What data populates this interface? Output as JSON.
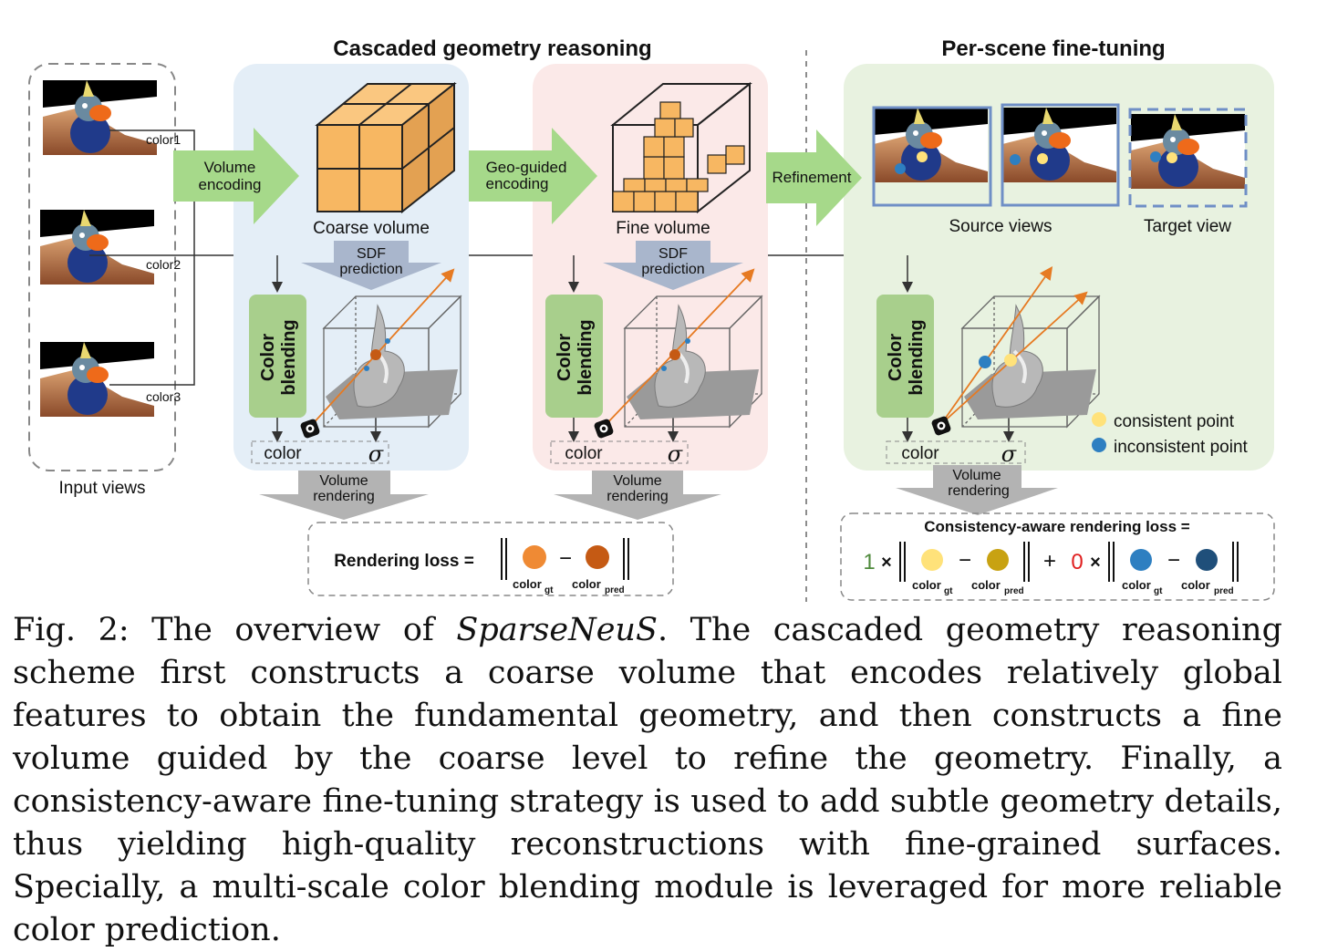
{
  "figure": {
    "sections": {
      "cascaded_title": "Cascaded geometry reasoning",
      "finetune_title": "Per-scene fine-tuning"
    },
    "input": {
      "caption": "Input views",
      "colors": [
        "color1",
        "color2",
        "color3"
      ]
    },
    "arrows": {
      "volume_encoding": [
        "Volume",
        "encoding"
      ],
      "geo_guided": [
        "Geo-guided",
        "encoding"
      ],
      "refinement": "Refinement"
    },
    "volumes": {
      "coarse": "Coarse volume",
      "fine": "Fine volume"
    },
    "sdf_prediction": [
      "SDF",
      "prediction"
    ],
    "color_blending": [
      "Color",
      "blending"
    ],
    "outputs": {
      "color": "color",
      "sigma": "σ"
    },
    "volume_rendering": [
      "Volume",
      "rendering"
    ],
    "finetune": {
      "source_views": "Source views",
      "target_view": "Target view",
      "legend_consistent": "consistent point",
      "legend_inconsistent": "inconsistent point"
    },
    "rendering_loss": {
      "label": "Rendering loss =",
      "minus": "−",
      "gt": "color",
      "gt_sub": "gt",
      "pred": "color",
      "pred_sub": "pred"
    },
    "consistency_loss": {
      "label": "Consistency-aware rendering loss =",
      "weight1": "1",
      "weight0": "0",
      "times": "×",
      "plus": "+",
      "minus": "−",
      "gt": "color",
      "gt_sub": "gt",
      "pred": "color",
      "pred_sub": "pred"
    },
    "colors": {
      "blue_panel": "#e4eef7",
      "red_panel": "#fbe9e8",
      "green_panel": "#e8f2e0",
      "green_arrow": "#a6d98a",
      "blend_box": "#a8cf8c",
      "cube": "#f6b96a",
      "orange_dot": "#ef8a34",
      "dark_orange_dot": "#c55a14",
      "yellow_dot": "#ffe27a",
      "olive_dot": "#c8a212",
      "blue_dot": "#2e7fc1",
      "navy_dot": "#1f4f7a"
    }
  },
  "caption": {
    "prefix": "Fig. 2: The overview of ",
    "italic": "SparseNeuS",
    "body": ". The cascaded geometry reasoning scheme first constructs a coarse volume that encodes relatively global features to ob­tain the fundamental geometry, and then constructs a fine volume guided by the coarse level to refine the geometry. Finally, a consistency-aware fine-tuning strategy is used to add subtle geometry details, thus yielding high-quality re­constructions with fine-grained surfaces. Specially, a multi-scale color blending module is leveraged for more reliable color prediction."
  }
}
